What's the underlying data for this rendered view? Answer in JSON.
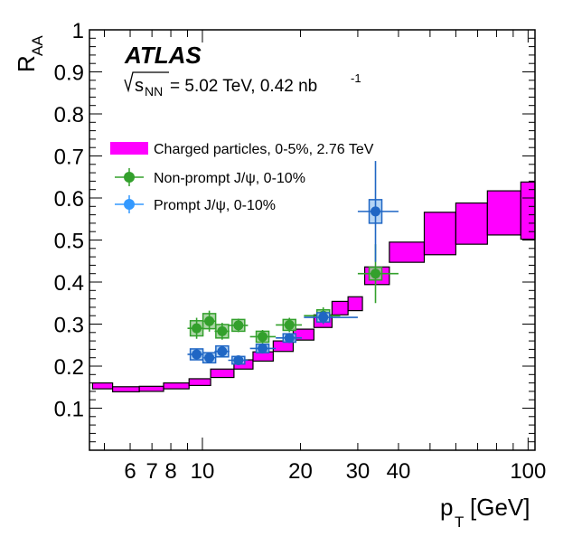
{
  "chart_data": {
    "type": "scatter",
    "experiment": "ATLAS",
    "energy_label": "= 5.02 TeV, 0.42 nb",
    "energy_symbol_base": "s",
    "energy_symbol_sub": "NN",
    "energy_sup": "-1",
    "ylabel_base": "R",
    "ylabel_sub": "AA",
    "xlabel_base": "p",
    "xlabel_sub": "T",
    "xlabel_unit": "[GeV]",
    "x_scale": "log",
    "xlim": [
      4.5,
      105
    ],
    "ylim": [
      0,
      1.0
    ],
    "y_ticks": [
      0.1,
      0.2,
      0.3,
      0.4,
      0.5,
      0.6,
      0.7,
      0.8,
      0.9,
      1
    ],
    "y_tick_labels": [
      "0.1",
      "0.2",
      "0.3",
      "0.4",
      "0.5",
      "0.6",
      "0.7",
      "0.8",
      "0.9",
      "1"
    ],
    "x_tick_values": [
      6,
      7,
      8,
      10,
      20,
      30,
      40,
      100
    ],
    "x_tick_labels": [
      "6",
      "7",
      "8",
      "10",
      "20",
      "30",
      "40",
      "100"
    ],
    "legend_position": "top-left",
    "legend": [
      {
        "name": "Charged particles, 0-5%, 2.76 TeV",
        "style": "box",
        "color": "#ff00ff"
      },
      {
        "name": "Non-prompt J/ψ, 0-10%",
        "style": "marker",
        "color": "#33a02c"
      },
      {
        "name": "Prompt J/ψ, 0-10%",
        "style": "marker",
        "color": "#3399ff"
      }
    ],
    "series": [
      {
        "name": "Charged particles, 0-5%, 2.76 TeV",
        "kind": "band",
        "fill": "#ff00ff",
        "bins": [
          {
            "xlo": 4.6,
            "xhi": 5.3,
            "ylo": 0.146,
            "yhi": 0.16
          },
          {
            "xlo": 5.3,
            "xhi": 6.4,
            "ylo": 0.139,
            "yhi": 0.151
          },
          {
            "xlo": 6.4,
            "xhi": 7.6,
            "ylo": 0.14,
            "yhi": 0.152
          },
          {
            "xlo": 7.6,
            "xhi": 9.1,
            "ylo": 0.146,
            "yhi": 0.16
          },
          {
            "xlo": 9.1,
            "xhi": 10.6,
            "ylo": 0.154,
            "yhi": 0.17
          },
          {
            "xlo": 10.6,
            "xhi": 12.5,
            "ylo": 0.173,
            "yhi": 0.193
          },
          {
            "xlo": 12.5,
            "xhi": 14.3,
            "ylo": 0.193,
            "yhi": 0.215
          },
          {
            "xlo": 14.3,
            "xhi": 16.5,
            "ylo": 0.212,
            "yhi": 0.234
          },
          {
            "xlo": 16.5,
            "xhi": 19.0,
            "ylo": 0.235,
            "yhi": 0.26
          },
          {
            "xlo": 19.0,
            "xhi": 22.0,
            "ylo": 0.262,
            "yhi": 0.288
          },
          {
            "xlo": 22.0,
            "xhi": 25.0,
            "ylo": 0.292,
            "yhi": 0.322
          },
          {
            "xlo": 25.0,
            "xhi": 28.0,
            "ylo": 0.322,
            "yhi": 0.354
          },
          {
            "xlo": 28.0,
            "xhi": 31.0,
            "ylo": 0.332,
            "yhi": 0.365
          },
          {
            "xlo": 31.5,
            "xhi": 37.5,
            "ylo": 0.394,
            "yhi": 0.436
          },
          {
            "xlo": 37.5,
            "xhi": 48.0,
            "ylo": 0.447,
            "yhi": 0.495
          },
          {
            "xlo": 48.0,
            "xhi": 60.0,
            "ylo": 0.465,
            "yhi": 0.566
          },
          {
            "xlo": 60.0,
            "xhi": 75.0,
            "ylo": 0.49,
            "yhi": 0.588
          },
          {
            "xlo": 75.0,
            "xhi": 95.0,
            "ylo": 0.512,
            "yhi": 0.617
          },
          {
            "xlo": 95.0,
            "xhi": 105.0,
            "ylo": 0.502,
            "yhi": 0.638
          }
        ]
      },
      {
        "name": "Non-prompt J/ψ, 0-10%",
        "kind": "points",
        "color": "#33a02c",
        "box_fill": "#9fcf99",
        "points": [
          {
            "x": 9.6,
            "y": 0.29,
            "xlo": 9.0,
            "xhi": 10.2,
            "stat": 0.025,
            "syslo": 0.272,
            "syshi": 0.308
          },
          {
            "x": 10.5,
            "y": 0.307,
            "xlo": 10.1,
            "xhi": 11.0,
            "stat": 0.025,
            "syslo": 0.289,
            "syshi": 0.325
          },
          {
            "x": 11.5,
            "y": 0.283,
            "xlo": 10.9,
            "xhi": 12.1,
            "stat": 0.02,
            "syslo": 0.267,
            "syshi": 0.299
          },
          {
            "x": 12.9,
            "y": 0.297,
            "xlo": 12.0,
            "xhi": 13.8,
            "stat": 0.016,
            "syslo": 0.283,
            "syshi": 0.311
          },
          {
            "x": 15.3,
            "y": 0.27,
            "xlo": 14.0,
            "xhi": 16.8,
            "stat": 0.016,
            "syslo": 0.257,
            "syshi": 0.283
          },
          {
            "x": 18.5,
            "y": 0.298,
            "xlo": 16.8,
            "xhi": 20.2,
            "stat": 0.017,
            "syslo": 0.285,
            "syshi": 0.311
          },
          {
            "x": 23.5,
            "y": 0.32,
            "xlo": 20.5,
            "xhi": 26.5,
            "stat": 0.02,
            "syslo": 0.306,
            "syshi": 0.334
          },
          {
            "x": 34.0,
            "y": 0.42,
            "xlo": 30.0,
            "xhi": 40.0,
            "stat": 0.07,
            "syslo": 0.405,
            "syshi": 0.435
          }
        ]
      },
      {
        "name": "Prompt J/ψ, 0-10%",
        "kind": "points",
        "color": "#1f66c4",
        "box_fill": "#a6cdf2",
        "points": [
          {
            "x": 9.6,
            "y": 0.228,
            "xlo": 9.0,
            "xhi": 10.2,
            "stat": 0.012,
            "syslo": 0.215,
            "syshi": 0.241
          },
          {
            "x": 10.5,
            "y": 0.22,
            "xlo": 10.1,
            "xhi": 11.0,
            "stat": 0.012,
            "syslo": 0.208,
            "syshi": 0.232
          },
          {
            "x": 11.5,
            "y": 0.235,
            "xlo": 10.9,
            "xhi": 12.1,
            "stat": 0.012,
            "syslo": 0.222,
            "syshi": 0.248
          },
          {
            "x": 12.9,
            "y": 0.214,
            "xlo": 12.0,
            "xhi": 13.8,
            "stat": 0.01,
            "syslo": 0.205,
            "syshi": 0.223
          },
          {
            "x": 15.3,
            "y": 0.242,
            "xlo": 14.0,
            "xhi": 16.8,
            "stat": 0.012,
            "syslo": 0.232,
            "syshi": 0.252
          },
          {
            "x": 18.5,
            "y": 0.267,
            "xlo": 16.8,
            "xhi": 20.2,
            "stat": 0.012,
            "syslo": 0.257,
            "syshi": 0.277
          },
          {
            "x": 23.5,
            "y": 0.316,
            "xlo": 20.5,
            "xhi": 30.0,
            "stat": 0.015,
            "syslo": 0.305,
            "syshi": 0.327
          },
          {
            "x": 34.0,
            "y": 0.568,
            "xlo": 30.0,
            "xhi": 40.0,
            "stat": 0.12,
            "syslo": 0.54,
            "syshi": 0.596
          }
        ]
      }
    ]
  }
}
